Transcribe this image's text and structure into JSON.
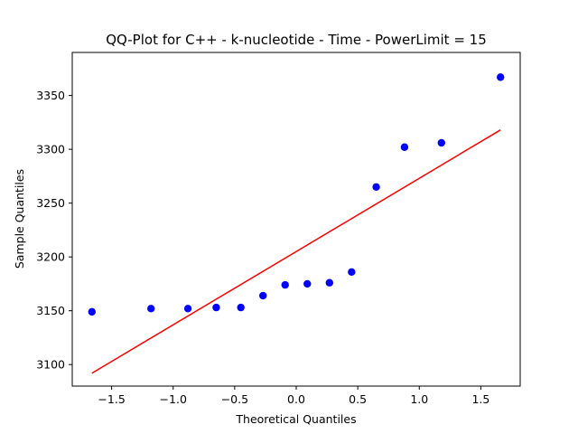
{
  "chart_data": {
    "type": "scatter",
    "title": "QQ-Plot for C++ - k-nucleotide - Time - PowerLimit = 15",
    "xlabel": "Theoretical Quantiles",
    "ylabel": "Sample Quantiles",
    "xlim": [
      -1.82,
      1.82
    ],
    "ylim": [
      3080,
      3390
    ],
    "xticks": [
      -1.5,
      -1.0,
      -0.5,
      0.0,
      0.5,
      1.0,
      1.5
    ],
    "xtick_labels": [
      "−1.5",
      "−1.0",
      "−0.5",
      "0.0",
      "0.5",
      "1.0",
      "1.5"
    ],
    "yticks": [
      3100,
      3150,
      3200,
      3250,
      3300,
      3350
    ],
    "ytick_labels": [
      "3100",
      "3150",
      "3200",
      "3250",
      "3300",
      "3350"
    ],
    "grid": false,
    "series": [
      {
        "marker_color": "#0000ff",
        "points": [
          {
            "x": -1.66,
            "y": 3149
          },
          {
            "x": -1.18,
            "y": 3152
          },
          {
            "x": -0.88,
            "y": 3152
          },
          {
            "x": -0.65,
            "y": 3153
          },
          {
            "x": -0.45,
            "y": 3153
          },
          {
            "x": -0.27,
            "y": 3164
          },
          {
            "x": -0.09,
            "y": 3174
          },
          {
            "x": 0.09,
            "y": 3175
          },
          {
            "x": 0.27,
            "y": 3176
          },
          {
            "x": 0.45,
            "y": 3186
          },
          {
            "x": 0.65,
            "y": 3265
          },
          {
            "x": 0.88,
            "y": 3302
          },
          {
            "x": 1.18,
            "y": 3306
          },
          {
            "x": 1.66,
            "y": 3367
          }
        ]
      }
    ],
    "reference_line": {
      "color": "#ff0000",
      "points": [
        {
          "x": -1.66,
          "y": 3092
        },
        {
          "x": 1.66,
          "y": 3318
        }
      ]
    }
  }
}
